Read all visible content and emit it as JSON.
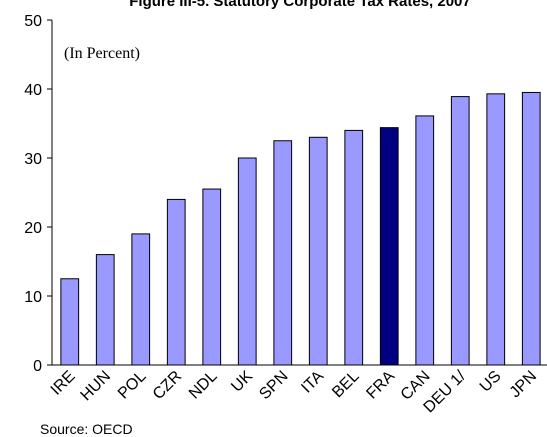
{
  "chart_data": {
    "type": "bar",
    "title": "Figure III-5. Statutory Corporate Tax Rates, 2007",
    "annotation": "(In Percent)",
    "source": "Source: OECD",
    "categories": [
      "IRE",
      "HUN",
      "POL",
      "CZR",
      "NDL",
      "UK",
      "SPN",
      "ITA",
      "BEL",
      "FRA",
      "CAN",
      "DEU 1/",
      "US",
      "JPN"
    ],
    "values": [
      12.5,
      16,
      19,
      24,
      25.5,
      30,
      32.5,
      33,
      34,
      34.4,
      36.1,
      38.9,
      39.3,
      39.5
    ],
    "colors": [
      "#9999ff",
      "#9999ff",
      "#9999ff",
      "#9999ff",
      "#9999ff",
      "#9999ff",
      "#9999ff",
      "#9999ff",
      "#9999ff",
      "#000080",
      "#9999ff",
      "#9999ff",
      "#9999ff",
      "#9999ff"
    ],
    "ylim": [
      0,
      50
    ],
    "yticks": [
      0,
      10,
      20,
      30,
      40,
      50
    ],
    "grid": false
  }
}
